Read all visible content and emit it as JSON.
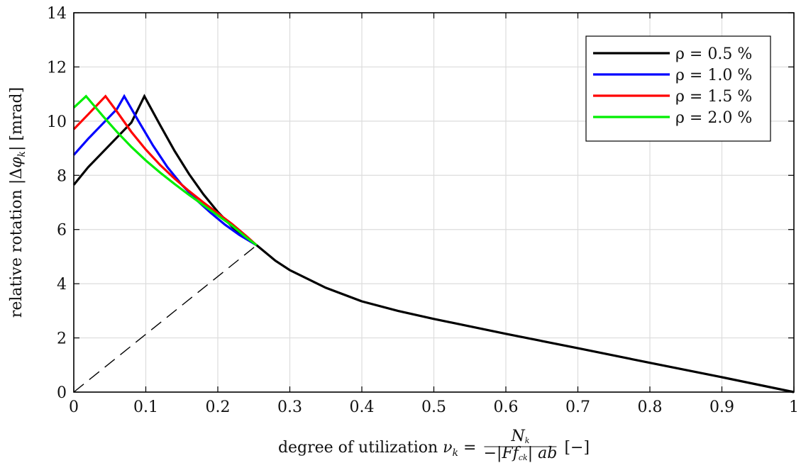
{
  "chart_data": {
    "type": "line",
    "title": "",
    "xlabel": "degree of utilization ν_k = N_k / (−|Ff_ck| ab) [−]",
    "ylabel": "relative rotation |Δφ_k| [mrad]",
    "xlabel_parts": {
      "prefix": "degree of utilization ",
      "var": "ν",
      "var_sub": "k",
      "eq": " = ",
      "num_var": "N",
      "num_sub": "k",
      "den": "−|Ff",
      "den_sub": "ck",
      "den_tail": "| ab",
      "suffix": " [−]"
    },
    "ylabel_parts": {
      "prefix": "relative rotation |Δ",
      "var": "φ",
      "var_sub": "k",
      "suffix": "| [mrad]"
    },
    "xlim": [
      0,
      1
    ],
    "ylim": [
      0,
      14
    ],
    "x_ticks": [
      0,
      0.1,
      0.2,
      0.3,
      0.4,
      0.5,
      0.6,
      0.7,
      0.8,
      0.9,
      1
    ],
    "x_tick_labels": [
      "0",
      "0.1",
      "0.2",
      "0.3",
      "0.4",
      "0.5",
      "0.6",
      "0.7",
      "0.8",
      "0.9",
      "1"
    ],
    "y_ticks": [
      0,
      2,
      4,
      6,
      8,
      10,
      12,
      14
    ],
    "y_tick_labels": [
      "0",
      "2",
      "4",
      "6",
      "8",
      "10",
      "12",
      "14"
    ],
    "grid": true,
    "legend_position": "top-right",
    "series": [
      {
        "name": "ρ = 0.5 %",
        "color": "#000000",
        "points": [
          [
            0,
            7.65
          ],
          [
            0.02,
            8.3
          ],
          [
            0.04,
            8.85
          ],
          [
            0.06,
            9.4
          ],
          [
            0.08,
            9.95
          ],
          [
            0.098,
            10.92
          ],
          [
            0.12,
            9.85
          ],
          [
            0.14,
            8.9
          ],
          [
            0.16,
            8.05
          ],
          [
            0.18,
            7.3
          ],
          [
            0.2,
            6.65
          ],
          [
            0.22,
            6.1
          ],
          [
            0.24,
            5.65
          ],
          [
            0.254,
            5.42
          ]
        ]
      },
      {
        "name": "ρ = 1.0 %",
        "color": "#0000ff",
        "points": [
          [
            0,
            8.75
          ],
          [
            0.02,
            9.35
          ],
          [
            0.04,
            9.9
          ],
          [
            0.06,
            10.45
          ],
          [
            0.07,
            10.92
          ],
          [
            0.09,
            10.0
          ],
          [
            0.11,
            9.1
          ],
          [
            0.13,
            8.3
          ],
          [
            0.15,
            7.65
          ],
          [
            0.17,
            7.1
          ],
          [
            0.19,
            6.62
          ],
          [
            0.21,
            6.18
          ],
          [
            0.23,
            5.8
          ],
          [
            0.254,
            5.42
          ]
        ]
      },
      {
        "name": "ρ = 1.5 %",
        "color": "#ff0000",
        "points": [
          [
            0,
            9.7
          ],
          [
            0.02,
            10.25
          ],
          [
            0.044,
            10.92
          ],
          [
            0.06,
            10.35
          ],
          [
            0.08,
            9.6
          ],
          [
            0.1,
            8.95
          ],
          [
            0.12,
            8.38
          ],
          [
            0.14,
            7.88
          ],
          [
            0.16,
            7.42
          ],
          [
            0.18,
            7.0
          ],
          [
            0.2,
            6.6
          ],
          [
            0.22,
            6.2
          ],
          [
            0.24,
            5.75
          ],
          [
            0.254,
            5.42
          ]
        ]
      },
      {
        "name": "ρ = 2.0 %",
        "color": "#00ee00",
        "points": [
          [
            0,
            10.5
          ],
          [
            0.017,
            10.92
          ],
          [
            0.04,
            10.2
          ],
          [
            0.06,
            9.6
          ],
          [
            0.08,
            9.05
          ],
          [
            0.1,
            8.55
          ],
          [
            0.12,
            8.1
          ],
          [
            0.14,
            7.68
          ],
          [
            0.16,
            7.28
          ],
          [
            0.18,
            6.9
          ],
          [
            0.2,
            6.52
          ],
          [
            0.22,
            6.14
          ],
          [
            0.24,
            5.7
          ],
          [
            0.254,
            5.42
          ]
        ]
      },
      {
        "name": "",
        "color": "#000000",
        "points": [
          [
            0.254,
            5.42
          ],
          [
            0.28,
            4.85
          ],
          [
            0.3,
            4.5
          ],
          [
            0.35,
            3.85
          ],
          [
            0.4,
            3.35
          ],
          [
            0.45,
            3.0
          ],
          [
            0.5,
            2.7
          ],
          [
            0.6,
            2.15
          ],
          [
            0.7,
            1.62
          ],
          [
            0.8,
            1.08
          ],
          [
            0.9,
            0.55
          ],
          [
            1.0,
            0.0
          ]
        ]
      },
      {
        "name": "",
        "color": "#000000",
        "dashed": true,
        "points": [
          [
            0,
            0
          ],
          [
            0.254,
            5.42
          ]
        ]
      }
    ]
  }
}
